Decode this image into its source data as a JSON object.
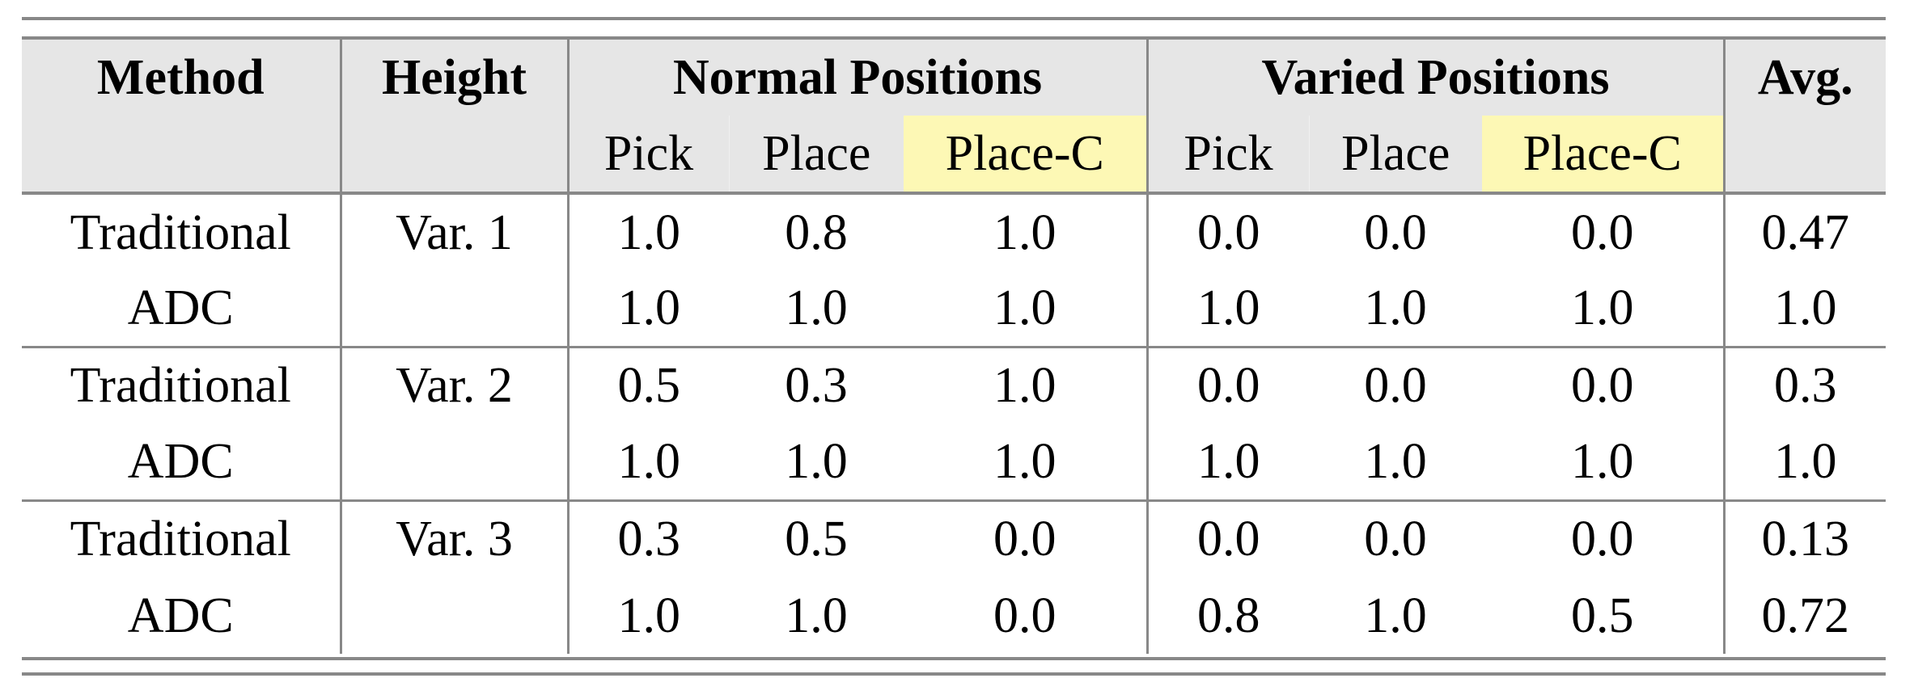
{
  "headers": {
    "method": "Method",
    "height": "Height",
    "normal": "Normal Positions",
    "varied": "Varied Positions",
    "avg": "Avg.",
    "sub": [
      "Pick",
      "Place",
      "Place-C",
      "Pick",
      "Place",
      "Place-C"
    ]
  },
  "highlight_color": "#fdf8b5",
  "rows": [
    {
      "method": "Traditional",
      "height": "Var. 1",
      "vals": [
        "1.0",
        "0.8",
        "1.0",
        "0.0",
        "0.0",
        "0.0"
      ],
      "avg": "0.47"
    },
    {
      "method": "ADC",
      "height": "",
      "vals": [
        "1.0",
        "1.0",
        "1.0",
        "1.0",
        "1.0",
        "1.0"
      ],
      "avg": "1.0"
    },
    {
      "method": "Traditional",
      "height": "Var. 2",
      "vals": [
        "0.5",
        "0.3",
        "1.0",
        "0.0",
        "0.0",
        "0.0"
      ],
      "avg": "0.3"
    },
    {
      "method": "ADC",
      "height": "",
      "vals": [
        "1.0",
        "1.0",
        "1.0",
        "1.0",
        "1.0",
        "1.0"
      ],
      "avg": "1.0"
    },
    {
      "method": "Traditional",
      "height": "Var. 3",
      "vals": [
        "0.3",
        "0.5",
        "0.0",
        "0.0",
        "0.0",
        "0.0"
      ],
      "avg": "0.13"
    },
    {
      "method": "ADC",
      "height": "",
      "vals": [
        "1.0",
        "1.0",
        "0.0",
        "0.8",
        "1.0",
        "0.5"
      ],
      "avg": "0.72"
    }
  ]
}
